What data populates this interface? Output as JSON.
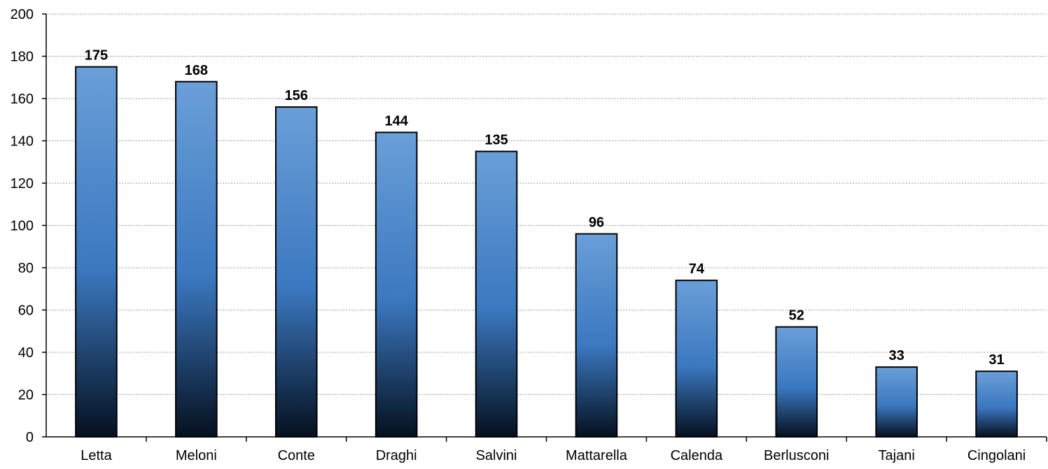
{
  "chart_data": {
    "type": "bar",
    "categories": [
      "Letta",
      "Meloni",
      "Conte",
      "Draghi",
      "Salvini",
      "Mattarella",
      "Calenda",
      "Berlusconi",
      "Tajani",
      "Cingolani"
    ],
    "values": [
      175,
      168,
      156,
      144,
      135,
      96,
      74,
      52,
      33,
      31
    ],
    "value_labels": [
      "175",
      "168",
      "156",
      "144",
      "135",
      "96",
      "74",
      "52",
      "33",
      "31"
    ],
    "ylim": [
      0,
      200
    ],
    "yticks": [
      0,
      20,
      40,
      60,
      80,
      100,
      120,
      140,
      160,
      180,
      200
    ],
    "grid": true,
    "legend": "none",
    "colors": {
      "bar_top": "#6a9fd8",
      "bar_mid": "#3b78c0",
      "bar_bottom": "#05101f",
      "bar_stroke": "#000000",
      "grid": "#9a9a9a",
      "axis": "#000000",
      "text": "#000000"
    }
  }
}
